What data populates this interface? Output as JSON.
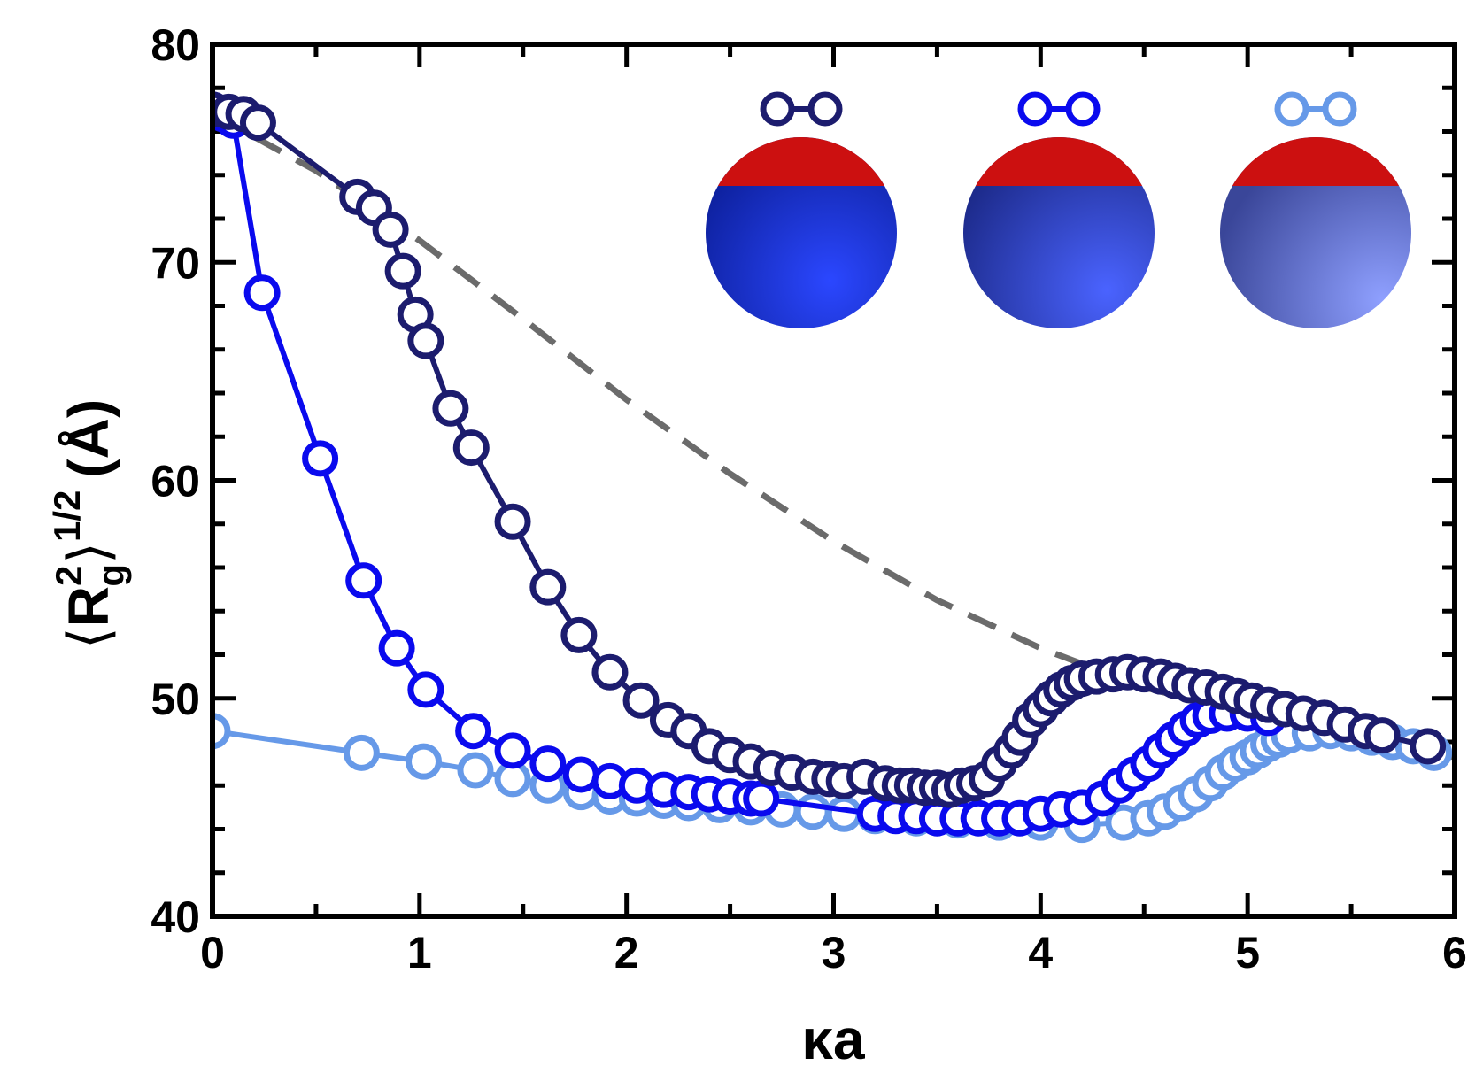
{
  "chart_data": {
    "type": "scatter",
    "xlabel": "κa",
    "ylabel": {
      "left_bracket": "⟨",
      "base": "R",
      "superscript": "2",
      "subscript": "g",
      "right_bracket": "⟩",
      "power": "1/2",
      "unit": "(Å)"
    },
    "xlim": [
      0,
      6
    ],
    "ylim": [
      40,
      80
    ],
    "x_ticks": [
      "0",
      "1",
      "2",
      "3",
      "4",
      "5",
      "6"
    ],
    "y_ticks": [
      "40",
      "50",
      "60",
      "70",
      "80"
    ],
    "grid": false,
    "legend": "top-right, marker pairs above shaded sphere icons (no text)",
    "series": [
      {
        "color": "#1c1c6e",
        "marker": "open-circle",
        "points": [
          [
            0.0,
            77.0
          ],
          [
            0.08,
            76.9
          ],
          [
            0.15,
            76.8
          ],
          [
            0.22,
            76.4
          ],
          [
            0.7,
            73.0
          ],
          [
            0.78,
            72.5
          ],
          [
            0.86,
            71.5
          ],
          [
            0.92,
            69.6
          ],
          [
            0.98,
            67.6
          ],
          [
            1.03,
            66.4
          ],
          [
            1.15,
            63.3
          ],
          [
            1.25,
            61.5
          ],
          [
            1.45,
            58.1
          ],
          [
            1.62,
            55.1
          ],
          [
            1.77,
            52.9
          ],
          [
            1.92,
            51.2
          ],
          [
            2.07,
            49.9
          ],
          [
            2.2,
            49.0
          ],
          [
            2.3,
            48.5
          ],
          [
            2.4,
            47.8
          ],
          [
            2.5,
            47.4
          ],
          [
            2.6,
            47.1
          ],
          [
            2.7,
            46.8
          ],
          [
            2.8,
            46.6
          ],
          [
            2.9,
            46.4
          ],
          [
            2.98,
            46.3
          ],
          [
            3.05,
            46.2
          ],
          [
            3.15,
            46.4
          ],
          [
            3.25,
            46.1
          ],
          [
            3.32,
            46.0
          ],
          [
            3.38,
            46.0
          ],
          [
            3.44,
            45.9
          ],
          [
            3.5,
            45.9
          ],
          [
            3.56,
            45.8
          ],
          [
            3.62,
            46.0
          ],
          [
            3.68,
            46.1
          ],
          [
            3.74,
            46.3
          ],
          [
            3.8,
            47.0
          ],
          [
            3.86,
            47.6
          ],
          [
            3.9,
            48.2
          ],
          [
            3.95,
            49.0
          ],
          [
            4.0,
            49.5
          ],
          [
            4.05,
            50.0
          ],
          [
            4.1,
            50.4
          ],
          [
            4.15,
            50.7
          ],
          [
            4.2,
            50.9
          ],
          [
            4.27,
            51.0
          ],
          [
            4.35,
            51.1
          ],
          [
            4.42,
            51.2
          ],
          [
            4.5,
            51.1
          ],
          [
            4.58,
            51.0
          ],
          [
            4.65,
            50.8
          ],
          [
            4.72,
            50.6
          ],
          [
            4.8,
            50.5
          ],
          [
            4.88,
            50.3
          ],
          [
            4.95,
            50.1
          ],
          [
            5.02,
            49.9
          ],
          [
            5.1,
            49.7
          ],
          [
            5.18,
            49.5
          ],
          [
            5.27,
            49.3
          ],
          [
            5.37,
            49.1
          ],
          [
            5.47,
            48.8
          ],
          [
            5.57,
            48.5
          ],
          [
            5.65,
            48.3
          ],
          [
            5.87,
            47.8
          ]
        ]
      },
      {
        "color": "#0a0aee",
        "marker": "open-circle",
        "points": [
          [
            0.0,
            77.0
          ],
          [
            0.05,
            76.8
          ],
          [
            0.1,
            76.5
          ],
          [
            0.24,
            68.6
          ],
          [
            0.52,
            61.0
          ],
          [
            0.73,
            55.4
          ],
          [
            0.89,
            52.3
          ],
          [
            1.03,
            50.4
          ],
          [
            1.26,
            48.5
          ],
          [
            1.45,
            47.6
          ],
          [
            1.62,
            47.0
          ],
          [
            1.78,
            46.5
          ],
          [
            1.92,
            46.2
          ],
          [
            2.05,
            46.0
          ],
          [
            2.18,
            45.8
          ],
          [
            2.3,
            45.7
          ],
          [
            2.4,
            45.6
          ],
          [
            2.5,
            45.5
          ],
          [
            2.6,
            45.4
          ],
          [
            2.65,
            45.4
          ],
          [
            3.2,
            44.7
          ],
          [
            3.3,
            44.6
          ],
          [
            3.4,
            44.6
          ],
          [
            3.5,
            44.5
          ],
          [
            3.6,
            44.5
          ],
          [
            3.7,
            44.5
          ],
          [
            3.8,
            44.5
          ],
          [
            3.9,
            44.5
          ],
          [
            4.0,
            44.7
          ],
          [
            4.1,
            44.9
          ],
          [
            4.2,
            45.0
          ],
          [
            4.3,
            45.4
          ],
          [
            4.38,
            46.0
          ],
          [
            4.45,
            46.5
          ],
          [
            4.52,
            47.0
          ],
          [
            4.58,
            47.6
          ],
          [
            4.64,
            48.1
          ],
          [
            4.7,
            48.6
          ],
          [
            4.76,
            49.0
          ],
          [
            4.82,
            49.2
          ],
          [
            4.9,
            49.3
          ],
          [
            5.0,
            49.3
          ],
          [
            5.1,
            49.1
          ]
        ]
      },
      {
        "color": "#6699e8",
        "marker": "open-circle",
        "points": [
          [
            0.0,
            48.5
          ],
          [
            0.72,
            47.5
          ],
          [
            1.02,
            47.1
          ],
          [
            1.27,
            46.7
          ],
          [
            1.45,
            46.3
          ],
          [
            1.62,
            46.0
          ],
          [
            1.78,
            45.7
          ],
          [
            1.92,
            45.5
          ],
          [
            2.05,
            45.4
          ],
          [
            2.18,
            45.3
          ],
          [
            2.3,
            45.2
          ],
          [
            2.45,
            45.1
          ],
          [
            2.6,
            45.0
          ],
          [
            2.75,
            44.9
          ],
          [
            2.9,
            44.8
          ],
          [
            3.05,
            44.7
          ],
          [
            3.2,
            44.6
          ],
          [
            3.4,
            44.5
          ],
          [
            3.6,
            44.4
          ],
          [
            3.8,
            44.3
          ],
          [
            4.0,
            44.3
          ],
          [
            4.2,
            44.2
          ],
          [
            4.4,
            44.3
          ],
          [
            4.52,
            44.5
          ],
          [
            4.6,
            44.8
          ],
          [
            4.68,
            45.2
          ],
          [
            4.75,
            45.6
          ],
          [
            4.82,
            46.1
          ],
          [
            4.88,
            46.6
          ],
          [
            4.94,
            47.0
          ],
          [
            5.0,
            47.3
          ],
          [
            5.05,
            47.6
          ],
          [
            5.1,
            47.9
          ],
          [
            5.15,
            48.1
          ],
          [
            5.2,
            48.3
          ],
          [
            5.3,
            48.4
          ],
          [
            5.4,
            48.5
          ],
          [
            5.5,
            48.4
          ],
          [
            5.6,
            48.2
          ],
          [
            5.7,
            48.0
          ],
          [
            5.8,
            47.8
          ],
          [
            5.9,
            47.5
          ]
        ]
      },
      {
        "color": "#6b6b6b",
        "line": "dashed",
        "points": [
          [
            0.0,
            76.8
          ],
          [
            0.5,
            74.2
          ],
          [
            1.0,
            71.0
          ],
          [
            1.5,
            67.4
          ],
          [
            2.0,
            63.7
          ],
          [
            2.5,
            60.3
          ],
          [
            3.0,
            57.2
          ],
          [
            3.5,
            54.5
          ],
          [
            4.0,
            52.3
          ],
          [
            4.5,
            50.5
          ],
          [
            5.0,
            49.3
          ],
          [
            5.5,
            48.3
          ],
          [
            6.0,
            47.3
          ]
        ]
      }
    ],
    "legend_icons": [
      {
        "marker_color": "#1c1c6e",
        "cap_color": "#cc1010",
        "body_color": "#1a2fd6"
      },
      {
        "marker_color": "#0a0aee",
        "cap_color": "#cc1010",
        "body_color": "#2d45d0"
      },
      {
        "marker_color": "#6699e8",
        "cap_color": "#cc1010",
        "body_color": "#6c80dd"
      }
    ]
  }
}
